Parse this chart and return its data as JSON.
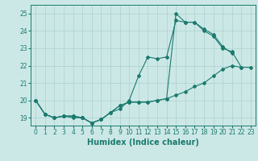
{
  "title": "",
  "xlabel": "Humidex (Indice chaleur)",
  "ylabel": "",
  "xlim": [
    -0.5,
    23.5
  ],
  "ylim": [
    18.55,
    25.5
  ],
  "yticks": [
    19,
    20,
    21,
    22,
    23,
    24,
    25
  ],
  "xticks": [
    0,
    1,
    2,
    3,
    4,
    5,
    6,
    7,
    8,
    9,
    10,
    11,
    12,
    13,
    14,
    15,
    16,
    17,
    18,
    19,
    20,
    21,
    22,
    23
  ],
  "bg_color": "#cce8e6",
  "grid_color": "#aad0ce",
  "line_color": "#1a7a6e",
  "line1_x": [
    0,
    1,
    2,
    3,
    4,
    5,
    6,
    7,
    8,
    9,
    10,
    11,
    12,
    13,
    14,
    15,
    16,
    17,
    18,
    19,
    20,
    21,
    22
  ],
  "line1_y": [
    20.0,
    19.2,
    19.0,
    19.1,
    19.0,
    19.0,
    18.7,
    18.9,
    19.3,
    19.5,
    20.0,
    21.4,
    22.5,
    22.4,
    22.5,
    24.6,
    24.5,
    24.5,
    24.0,
    23.7,
    23.0,
    22.8,
    21.9
  ],
  "line2_x": [
    0,
    1,
    2,
    3,
    4,
    5,
    6,
    7,
    8,
    9,
    10,
    11,
    12,
    13,
    14,
    15,
    16,
    17,
    18,
    19,
    20,
    21
  ],
  "line2_y": [
    20.0,
    19.2,
    19.0,
    19.1,
    19.1,
    19.0,
    18.7,
    18.9,
    19.3,
    19.7,
    19.9,
    19.9,
    19.9,
    20.0,
    20.1,
    25.0,
    24.5,
    24.5,
    24.1,
    23.8,
    23.1,
    22.7
  ],
  "line3_x": [
    0,
    1,
    2,
    3,
    4,
    5,
    6,
    7,
    8,
    9,
    10,
    11,
    12,
    13,
    14,
    15,
    16,
    17,
    18,
    19,
    20,
    21,
    22,
    23
  ],
  "line3_y": [
    20.0,
    19.2,
    19.0,
    19.1,
    19.1,
    19.0,
    18.7,
    18.9,
    19.3,
    19.7,
    19.9,
    19.9,
    19.9,
    20.0,
    20.1,
    20.3,
    20.5,
    20.8,
    21.0,
    21.4,
    21.8,
    22.0,
    21.9,
    21.9
  ],
  "marker": "D",
  "markersize": 2.0,
  "linewidth": 0.8,
  "tick_fontsize": 5.5,
  "xlabel_fontsize": 7.0
}
